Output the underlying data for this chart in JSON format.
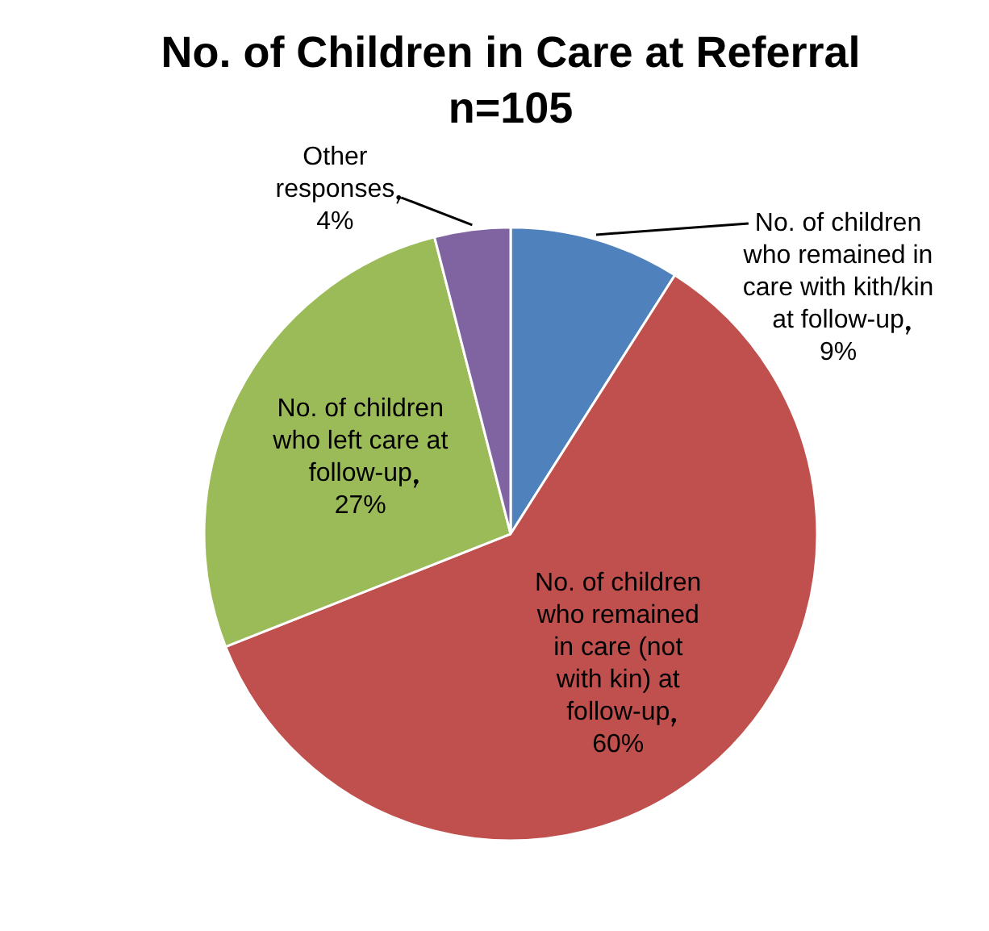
{
  "chart_data": {
    "type": "pie",
    "title": "No. of Children in Care at Referral",
    "subtitle": "n=105",
    "categories": [
      "No. of children who remained in care with kith/kin at follow-up",
      "No. of children who remained in care (not with kin) at follow-up",
      "No. of children who left care at follow-up",
      "Other responses"
    ],
    "values": [
      9,
      60,
      27,
      4
    ],
    "colors": [
      "#4f81bd",
      "#c0504d",
      "#9bbb59",
      "#8064a2"
    ],
    "value_labels": [
      "9%",
      "60%",
      "27%",
      "4%"
    ],
    "legend": false
  }
}
